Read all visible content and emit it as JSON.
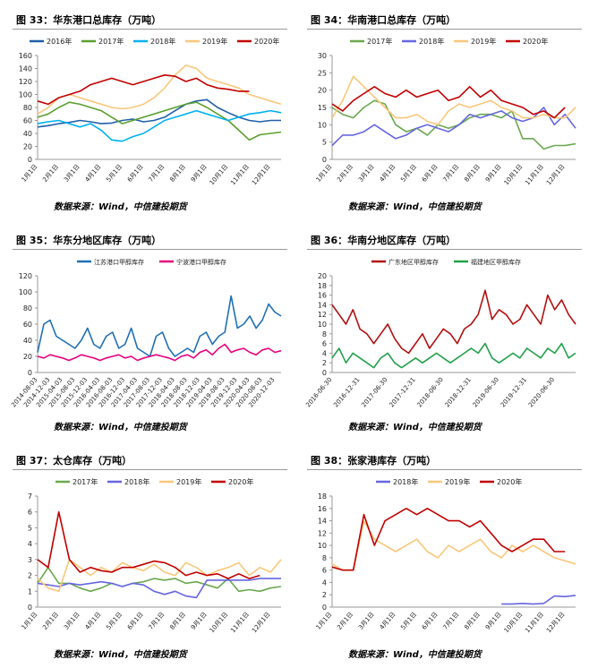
{
  "chart_data": [
    {
      "type": "line",
      "title": "图 33：华东港口总库存（万吨）",
      "source": "数据来源：Wind，中信建投期货",
      "categories": [
        "1月1日",
        null,
        "2月1日",
        null,
        "3月1日",
        null,
        "4月1日",
        null,
        "5月1日",
        null,
        "6月1日",
        null,
        "7月1日",
        null,
        "8月1日",
        null,
        "9月1日",
        null,
        "10月1日",
        null,
        "11月1日",
        null,
        "12月1日",
        null
      ],
      "ylim": [
        0,
        160
      ],
      "yticks": [
        0,
        20,
        40,
        60,
        80,
        100,
        120,
        140,
        160
      ],
      "series": [
        {
          "name": "2016年",
          "color": "#1f5fa8",
          "values": [
            50,
            52,
            55,
            57,
            60,
            58,
            55,
            56,
            60,
            62,
            58,
            60,
            65,
            75,
            85,
            90,
            92,
            80,
            72,
            65,
            60,
            58,
            60,
            60
          ]
        },
        {
          "name": "2017年",
          "color": "#5b9e2f",
          "values": [
            65,
            70,
            80,
            88,
            85,
            80,
            75,
            65,
            55,
            60,
            65,
            70,
            75,
            80,
            85,
            88,
            80,
            70,
            60,
            45,
            30,
            38,
            40,
            42
          ]
        },
        {
          "name": "2018年",
          "color": "#00b0f0",
          "values": [
            55,
            58,
            60,
            55,
            50,
            55,
            45,
            30,
            28,
            35,
            40,
            50,
            60,
            65,
            70,
            75,
            70,
            65,
            60,
            65,
            70,
            72,
            75,
            72
          ]
        },
        {
          "name": "2019年",
          "color": "#f9c77a",
          "values": [
            70,
            80,
            95,
            100,
            95,
            90,
            85,
            80,
            78,
            80,
            85,
            95,
            110,
            130,
            145,
            140,
            125,
            120,
            115,
            110,
            100,
            95,
            90,
            85
          ]
        },
        {
          "name": "2020年",
          "color": "#c00000",
          "values": [
            90,
            85,
            95,
            100,
            105,
            115,
            120,
            125,
            120,
            115,
            120,
            125,
            130,
            128,
            120,
            125,
            115,
            110,
            108,
            105,
            105,
            null,
            null,
            null
          ]
        }
      ]
    },
    {
      "type": "line",
      "title": "图 34：华南港口总库存（万吨）",
      "source": "数据来源：Wind，中信建投期货",
      "categories": [
        "1月1日",
        null,
        "2月1日",
        null,
        "3月1日",
        null,
        "4月1日",
        null,
        "5月1日",
        null,
        "6月1日",
        null,
        "7月1日",
        null,
        "8月1日",
        null,
        "9月1日",
        null,
        "10月1日",
        null,
        "11月1日",
        null,
        "12月1日",
        null
      ],
      "ylim": [
        0,
        30
      ],
      "yticks": [
        0,
        5,
        10,
        15,
        20,
        25,
        30
      ],
      "series": [
        {
          "name": "2017年",
          "color": "#6aa84f",
          "values": [
            15,
            13,
            12,
            15,
            17,
            16,
            10,
            8,
            9,
            7,
            10,
            9,
            10,
            12,
            13,
            13,
            12,
            14,
            6,
            6,
            3,
            4,
            4,
            4.5
          ]
        },
        {
          "name": "2018年",
          "color": "#6666e0",
          "values": [
            4,
            7,
            7,
            8,
            10,
            8,
            6,
            7,
            9,
            10,
            9,
            8,
            10,
            13,
            12,
            13,
            14,
            12,
            11,
            12,
            15,
            10,
            13,
            9
          ]
        },
        {
          "name": "2019年",
          "color": "#f9c77a",
          "values": [
            12,
            17,
            24,
            21,
            18,
            15,
            12,
            12,
            13,
            11,
            10,
            14,
            16,
            15,
            16,
            17,
            15,
            14,
            12,
            12,
            13,
            12,
            12,
            15
          ]
        },
        {
          "name": "2020年",
          "color": "#c00000",
          "values": [
            16,
            14,
            17,
            19,
            21,
            19,
            18,
            20,
            18,
            19,
            20,
            17,
            18,
            21,
            18,
            20,
            17,
            16,
            15,
            13,
            14,
            12,
            15,
            null
          ]
        }
      ]
    },
    {
      "type": "line",
      "title": "图 35：华东分地区库存（万吨）",
      "source": "数据来源：Wind，中信建投期货",
      "categories": [
        "2014-08-03",
        null,
        "2014-12-03",
        null,
        "2015-04-03",
        null,
        "2015-08-03",
        null,
        "2015-12-03",
        null,
        "2016-04-03",
        null,
        "2016-08-03",
        null,
        "2016-12-03",
        null,
        "2017-04-03",
        null,
        "2017-08-03",
        null,
        "2017-12-03",
        null,
        "2018-04-03",
        null,
        "2018-08-03",
        null,
        "2018-12-03",
        null,
        "2019-04-03",
        null,
        "2019-08-03",
        null,
        "2019-12-03",
        null,
        "2020-04-03",
        null,
        "2020-08-03",
        null,
        "2020-12-03",
        null
      ],
      "ylim": [
        0,
        120
      ],
      "yticks": [
        0,
        20,
        40,
        60,
        80,
        100,
        120
      ],
      "series": [
        {
          "name": "江苏港口甲醇库存",
          "color": "#1f6fb5",
          "values": [
            25,
            60,
            65,
            45,
            40,
            35,
            30,
            40,
            55,
            35,
            30,
            45,
            50,
            30,
            35,
            55,
            30,
            25,
            20,
            45,
            50,
            30,
            20,
            25,
            30,
            25,
            45,
            50,
            35,
            45,
            50,
            95,
            55,
            60,
            70,
            55,
            65,
            85,
            75,
            70
          ]
        },
        {
          "name": "宁波港口甲醇库存",
          "color": "#e6007e",
          "values": [
            20,
            18,
            22,
            20,
            18,
            15,
            18,
            22,
            20,
            18,
            15,
            18,
            20,
            22,
            18,
            20,
            15,
            18,
            20,
            22,
            20,
            18,
            15,
            20,
            22,
            18,
            25,
            28,
            22,
            30,
            35,
            25,
            28,
            30,
            25,
            22,
            28,
            30,
            25,
            27
          ]
        }
      ]
    },
    {
      "type": "line",
      "title": "图 36：华南分地区库存（万吨）",
      "source": "数据来源：Wind，中信建投期货",
      "categories": [
        "2016-06-30",
        null,
        null,
        null,
        "2016-12-31",
        null,
        null,
        null,
        "2017-06-30",
        null,
        null,
        null,
        "2017-12-31",
        null,
        null,
        null,
        "2018-06-30",
        null,
        null,
        null,
        "2018-12-31",
        null,
        null,
        null,
        "2019-06-30",
        null,
        null,
        null,
        "2019-12-31",
        null,
        null,
        null,
        "2020-06-30",
        null,
        null,
        null
      ],
      "ylim": [
        0,
        20
      ],
      "yticks": [
        0,
        2,
        4,
        6,
        8,
        10,
        12,
        14,
        16,
        18,
        20
      ],
      "series": [
        {
          "name": "广东地区甲醇库存",
          "color": "#b01010",
          "values": [
            14,
            12,
            10,
            13,
            9,
            8,
            6,
            8,
            10,
            7,
            5,
            4,
            6,
            8,
            5,
            7,
            9,
            8,
            6,
            9,
            10,
            12,
            17,
            11,
            13,
            12,
            10,
            11,
            14,
            12,
            10,
            16,
            13,
            15,
            12,
            10
          ]
        },
        {
          "name": "福建地区甲醇库存",
          "color": "#22a04a",
          "values": [
            3,
            5,
            2,
            4,
            3,
            2,
            1,
            3,
            4,
            2,
            1,
            2,
            3,
            2,
            3,
            4,
            3,
            2,
            3,
            4,
            5,
            4,
            6,
            3,
            2,
            3,
            4,
            3,
            5,
            4,
            3,
            5,
            4,
            6,
            3,
            4
          ]
        }
      ]
    },
    {
      "type": "line",
      "title": "图 37：太仓库存（万吨）",
      "source": "数据来源：Wind，中信建投期货",
      "categories": [
        "1月1日",
        null,
        "2月1日",
        null,
        "3月1日",
        null,
        "4月1日",
        null,
        "5月1日",
        null,
        "6月1日",
        null,
        "7月1日",
        null,
        "8月1日",
        null,
        "9月1日",
        null,
        "10月1日",
        null,
        "11月1日",
        null,
        "12月1日",
        null
      ],
      "ylim": [
        0,
        7
      ],
      "yticks": [
        0,
        1,
        2,
        3,
        4,
        5,
        6,
        7
      ],
      "series": [
        {
          "name": "2017年",
          "color": "#6aa84f",
          "values": [
            1.5,
            2.5,
            1.5,
            1.5,
            1.2,
            1,
            1.2,
            1.5,
            1.3,
            1.5,
            1.6,
            1.8,
            1.7,
            1.8,
            1.5,
            1.6,
            1.4,
            1.2,
            1.8,
            1.0,
            1.1,
            1.0,
            1.2,
            1.3
          ]
        },
        {
          "name": "2018年",
          "color": "#6666e0",
          "values": [
            1.5,
            1.4,
            1.3,
            1.5,
            1.4,
            1.5,
            1.6,
            1.5,
            1.3,
            1.5,
            1.4,
            1.0,
            0.8,
            1.0,
            0.7,
            0.6,
            1.7,
            1.7,
            1.7,
            1.7,
            1.7,
            1.8,
            1.8,
            1.8
          ]
        },
        {
          "name": "2019年",
          "color": "#f9c77a",
          "values": [
            1.8,
            1.2,
            1.0,
            3.0,
            2.5,
            2.0,
            2.5,
            2.2,
            2.8,
            2.5,
            2.3,
            2.7,
            2.2,
            2.0,
            2.8,
            2.5,
            2.0,
            2.3,
            2.5,
            2.8,
            2.0,
            2.5,
            2.2,
            3.0
          ]
        },
        {
          "name": "2020年",
          "color": "#c00000",
          "values": [
            3.0,
            2.5,
            6.0,
            3.0,
            2.2,
            2.5,
            2.3,
            2.2,
            2.5,
            2.5,
            2.7,
            2.9,
            2.8,
            2.5,
            2.0,
            2.2,
            2.0,
            2.1,
            1.8,
            2.1,
            1.8,
            2.0,
            null,
            null
          ]
        }
      ]
    },
    {
      "type": "line",
      "title": "图 38：张家港库存（万吨）",
      "source": "数据来源：Wind，中信建投期货",
      "categories": [
        "1月1日",
        null,
        "2月1日",
        null,
        "3月1日",
        null,
        "4月1日",
        null,
        "5月1日",
        null,
        "6月1日",
        null,
        "7月1日",
        null,
        "8月1日",
        null,
        "9月1日",
        null,
        "10月1日",
        null,
        "11月1日",
        null,
        "12月1日",
        null
      ],
      "ylim": [
        0,
        18
      ],
      "yticks": [
        0,
        2,
        4,
        6,
        8,
        10,
        12,
        14,
        16,
        18
      ],
      "series": [
        {
          "name": "2018年",
          "color": "#6666e0",
          "values": [
            null,
            null,
            null,
            null,
            null,
            null,
            null,
            null,
            null,
            null,
            null,
            null,
            null,
            null,
            null,
            null,
            0.5,
            0.5,
            0.6,
            0.5,
            0.6,
            1.8,
            1.7,
            1.9
          ]
        },
        {
          "name": "2019年",
          "color": "#f9c77a",
          "values": [
            7,
            6,
            6,
            14,
            11,
            10,
            9,
            10,
            11,
            9,
            8,
            10,
            9,
            10,
            11,
            9,
            8,
            10,
            9,
            10,
            9,
            8,
            7.5,
            7
          ]
        },
        {
          "name": "2020年",
          "color": "#c00000",
          "values": [
            6.5,
            6,
            6,
            15,
            10,
            14,
            15,
            16,
            15,
            16,
            15,
            14,
            14,
            13,
            14,
            12,
            10,
            9,
            10,
            11,
            11,
            9,
            9,
            null
          ]
        }
      ]
    }
  ]
}
